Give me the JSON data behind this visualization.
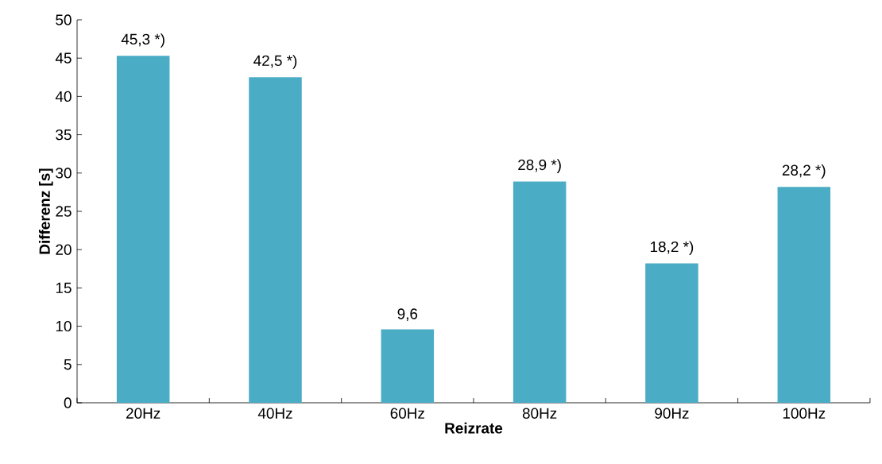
{
  "chart_data": {
    "type": "bar",
    "xlabel": "Reizrate",
    "ylabel": "Differenz [s]",
    "categories": [
      "20Hz",
      "40Hz",
      "60Hz",
      "80Hz",
      "90Hz",
      "100Hz"
    ],
    "values": [
      45.3,
      42.5,
      9.6,
      28.9,
      18.2,
      28.2
    ],
    "value_labels": [
      "45,3 *)",
      "42,5 *)",
      "9,6",
      "28,9 *)",
      "18,2 *)",
      "28,2 *)"
    ],
    "color": "#4bacc6",
    "ylim": [
      0,
      50
    ],
    "yticks": [
      0,
      5,
      10,
      15,
      20,
      25,
      30,
      35,
      40,
      45,
      50
    ]
  }
}
